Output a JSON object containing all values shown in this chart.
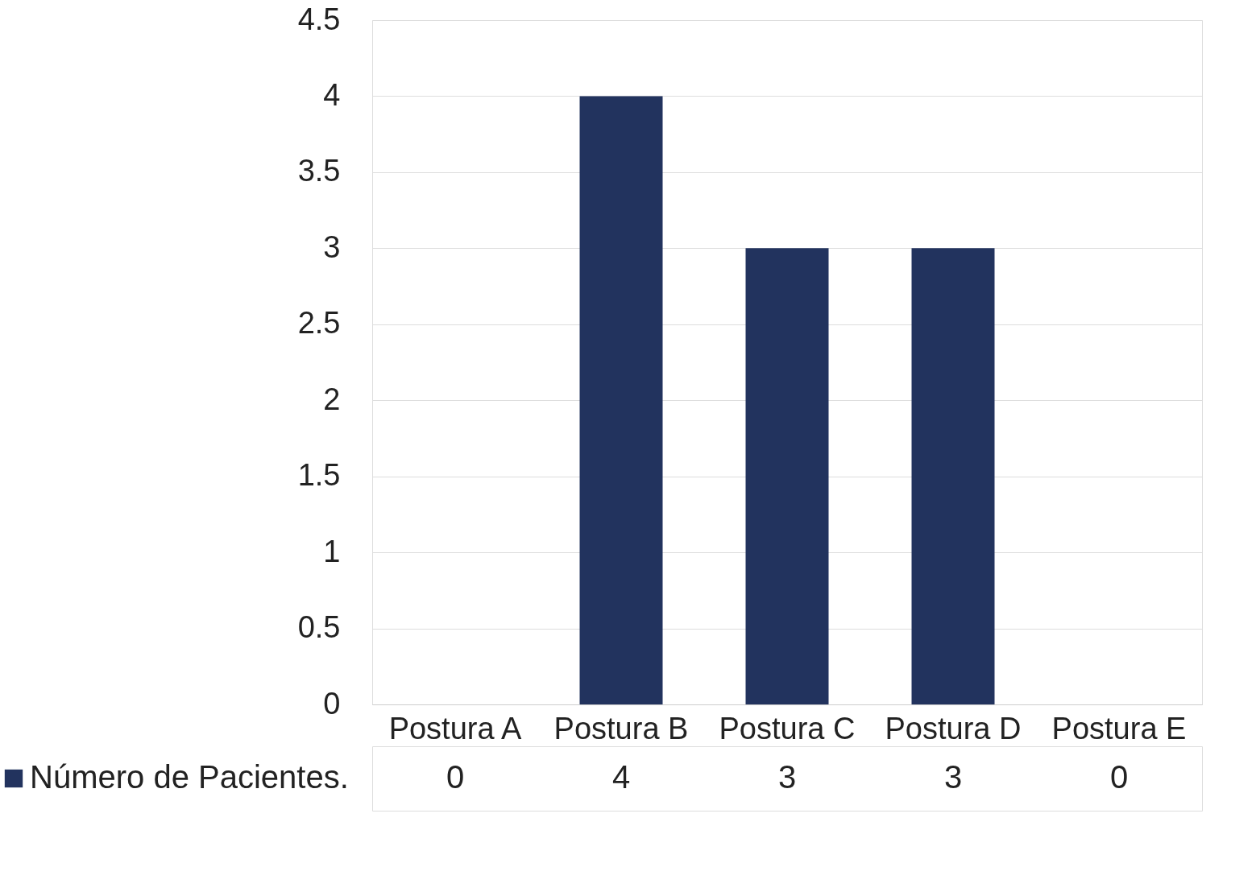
{
  "chart_data": {
    "type": "bar",
    "categories": [
      "Postura A",
      "Postura B",
      "Postura C",
      "Postura D",
      "Postura E"
    ],
    "series": [
      {
        "name": "Número de Pacientes.",
        "color": "#22335e",
        "values": [
          0,
          4,
          3,
          3,
          0
        ]
      }
    ],
    "ylim": [
      0,
      4.5
    ],
    "yticks": [
      0,
      0.5,
      1,
      1.5,
      2,
      2.5,
      3,
      3.5,
      4,
      4.5
    ],
    "grid": "y",
    "data_labels": true,
    "legend": "bottom"
  }
}
